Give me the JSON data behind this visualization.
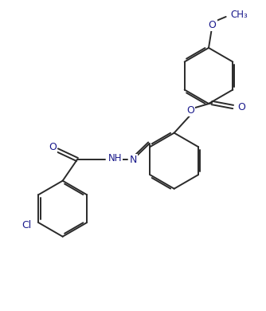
{
  "background_color": "#ffffff",
  "line_color": "#2a2a2a",
  "atom_color": "#1a1a8c",
  "bond_lw": 1.4,
  "figsize": [
    3.34,
    3.9
  ],
  "dpi": 100,
  "xlim": [
    0,
    10
  ],
  "ylim": [
    0,
    11.7
  ]
}
